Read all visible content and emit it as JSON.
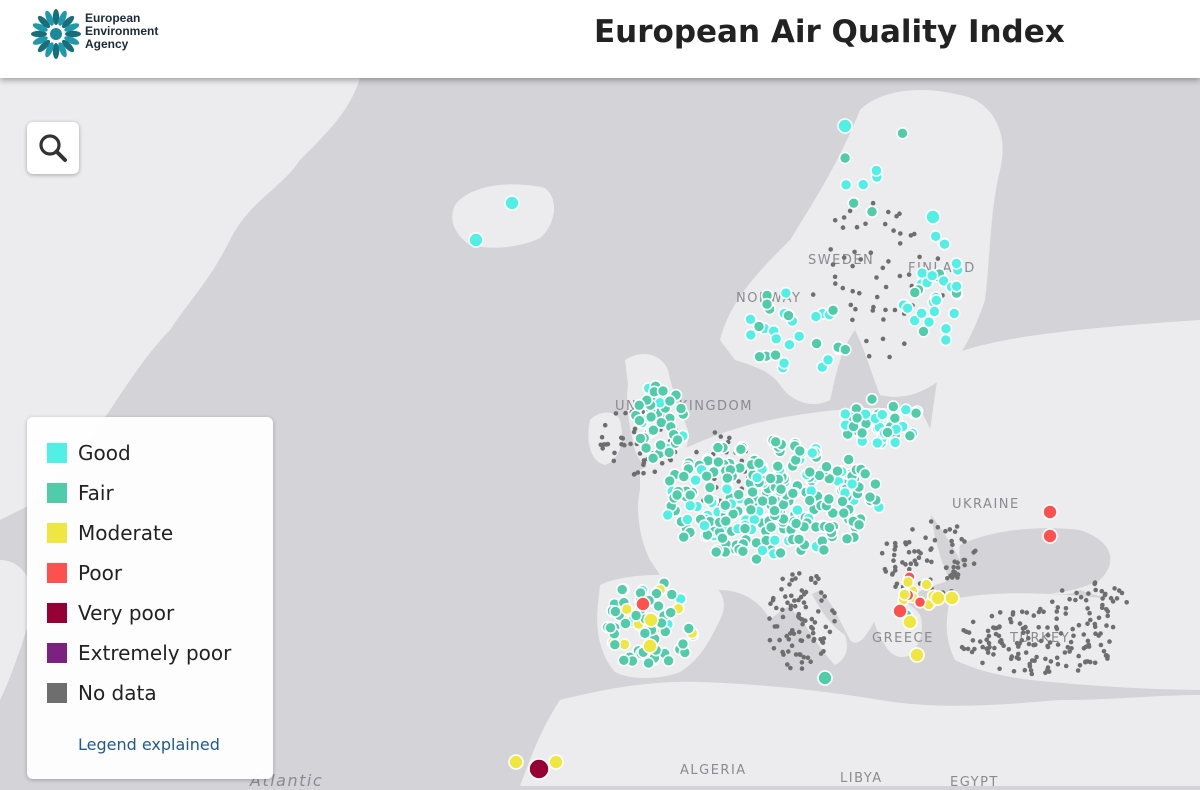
{
  "header": {
    "org_name": [
      "European",
      "Environment",
      "Agency"
    ],
    "title": "European Air Quality Index"
  },
  "search": {
    "icon": "search-icon"
  },
  "legend": {
    "items": [
      {
        "label": "Good",
        "color": "#50f0e6"
      },
      {
        "label": "Fair",
        "color": "#50ccaa"
      },
      {
        "label": "Moderate",
        "color": "#f0e641"
      },
      {
        "label": "Poor",
        "color": "#ff5050"
      },
      {
        "label": "Very poor",
        "color": "#960032"
      },
      {
        "label": "Extremely poor",
        "color": "#7d2181"
      },
      {
        "label": "No data",
        "color": "#6e6e6e"
      }
    ],
    "link": "Legend explained"
  },
  "map": {
    "labels": [
      "SWEDEN",
      "FINLAND",
      "NORWAY",
      "UNITED KINGDOM",
      "UKRAINE",
      "GREECE",
      "TURKEY",
      "ALGERIA",
      "LIBYA",
      "EGYPT",
      "Atlantic"
    ]
  }
}
